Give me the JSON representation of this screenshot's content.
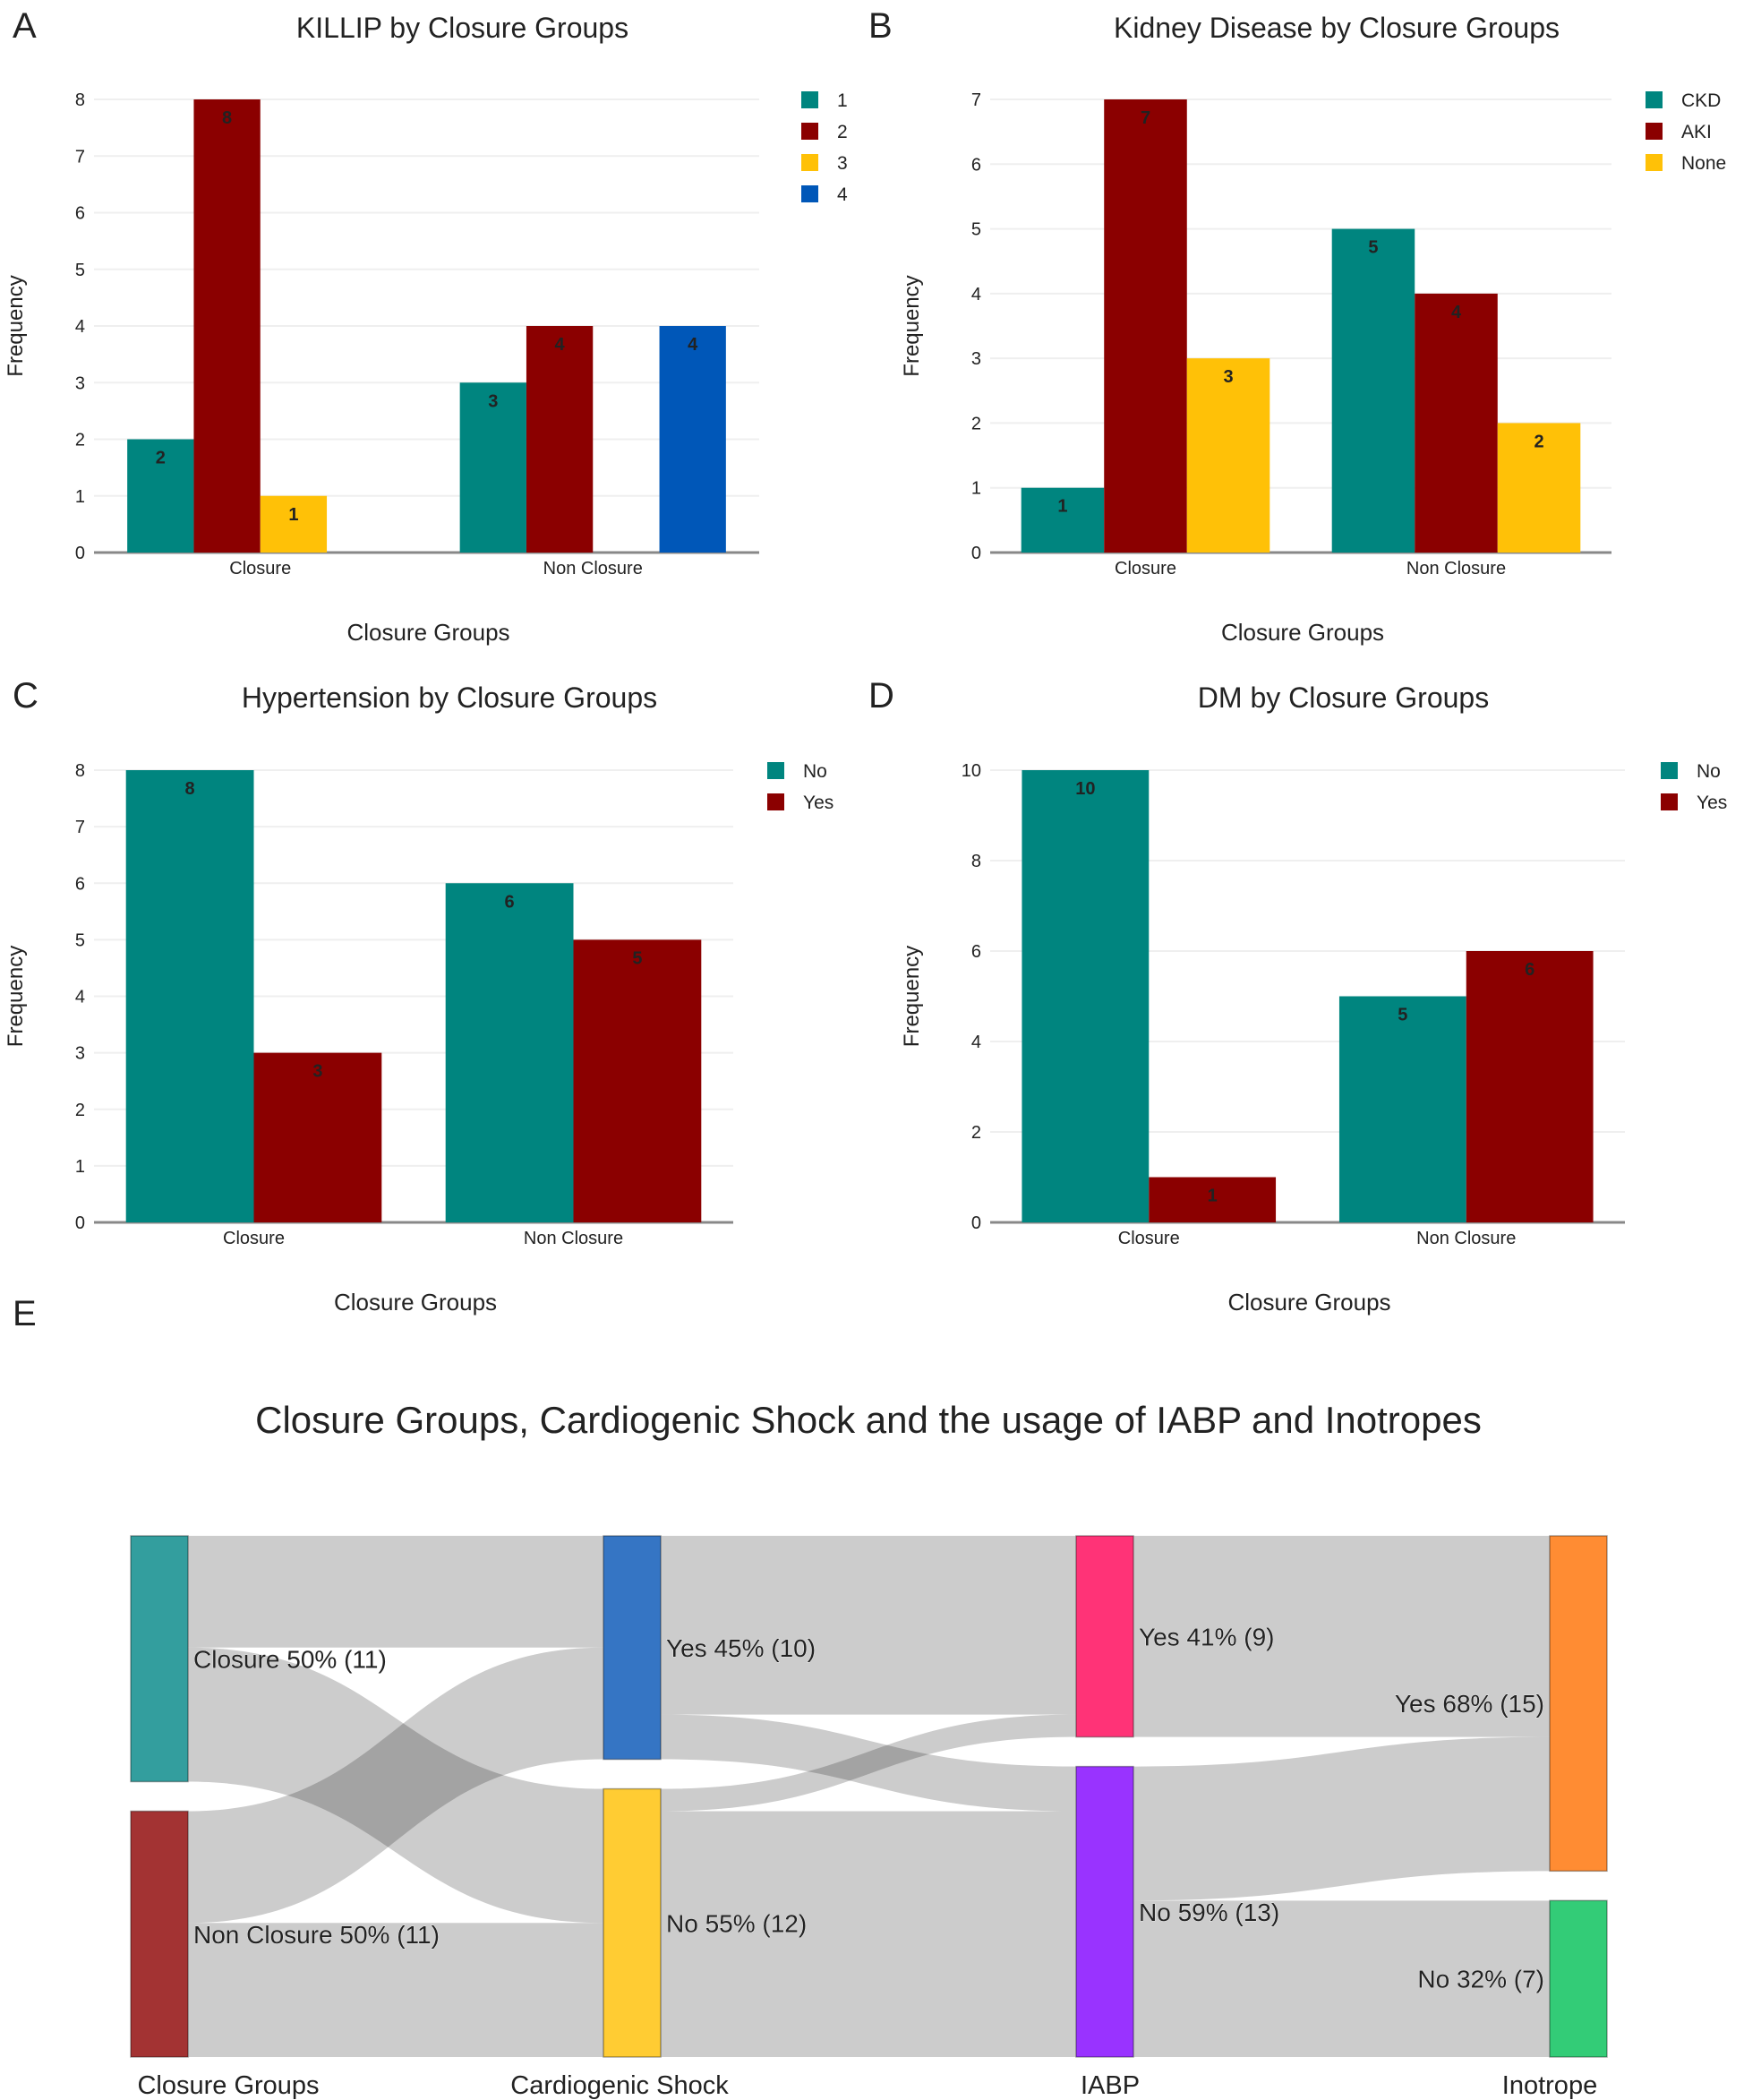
{
  "chart_data": [
    {
      "panel": "A",
      "type": "bar",
      "title": "KILLIP by Closure Groups",
      "xlabel": "Closure Groups",
      "ylabel": "Frequency",
      "categories": [
        "Closure",
        "Non Closure"
      ],
      "ylim": [
        0,
        8
      ],
      "yticks": [
        0,
        1,
        2,
        3,
        4,
        5,
        6,
        7,
        8
      ],
      "legend_position": "top-right",
      "series": [
        {
          "name": "1",
          "color": "#00857F",
          "values": [
            2,
            3
          ]
        },
        {
          "name": "2",
          "color": "#8B0000",
          "values": [
            8,
            4
          ]
        },
        {
          "name": "3",
          "color": "#FFC107",
          "values": [
            1,
            0
          ]
        },
        {
          "name": "4",
          "color": "#0057B8",
          "values": [
            0,
            4
          ]
        }
      ]
    },
    {
      "panel": "B",
      "type": "bar",
      "title": "Kidney Disease by Closure Groups",
      "xlabel": "Closure Groups",
      "ylabel": "Frequency",
      "categories": [
        "Closure",
        "Non Closure"
      ],
      "ylim": [
        0,
        7
      ],
      "yticks": [
        0,
        1,
        2,
        3,
        4,
        5,
        6,
        7
      ],
      "legend_position": "top-right",
      "series": [
        {
          "name": "CKD",
          "color": "#00857F",
          "values": [
            1,
            5
          ]
        },
        {
          "name": "AKI",
          "color": "#8B0000",
          "values": [
            7,
            4
          ]
        },
        {
          "name": "None",
          "color": "#FFC107",
          "values": [
            3,
            2
          ]
        }
      ]
    },
    {
      "panel": "C",
      "type": "bar",
      "title": "Hypertension by Closure Groups",
      "xlabel": "Closure Groups",
      "ylabel": "Frequency",
      "categories": [
        "Closure",
        "Non Closure"
      ],
      "ylim": [
        0,
        8
      ],
      "yticks": [
        0,
        1,
        2,
        3,
        4,
        5,
        6,
        7,
        8
      ],
      "legend_position": "top-right",
      "series": [
        {
          "name": "No",
          "color": "#00857F",
          "values": [
            8,
            6
          ]
        },
        {
          "name": "Yes",
          "color": "#8B0000",
          "values": [
            3,
            5
          ]
        }
      ]
    },
    {
      "panel": "D",
      "type": "bar",
      "title": "DM by Closure Groups",
      "xlabel": "Closure Groups",
      "ylabel": "Frequency",
      "categories": [
        "Closure",
        "Non Closure"
      ],
      "ylim": [
        0,
        10
      ],
      "yticks": [
        0,
        2,
        4,
        6,
        8,
        10
      ],
      "legend_position": "top-right",
      "series": [
        {
          "name": "No",
          "color": "#00857F",
          "values": [
            10,
            5
          ]
        },
        {
          "name": "Yes",
          "color": "#8B0000",
          "values": [
            1,
            6
          ]
        }
      ]
    },
    {
      "panel": "E",
      "type": "sankey",
      "title": "Closure Groups, Cardiogenic Shock and the usage of IABP and Inotropes",
      "columns": [
        "Closure Groups",
        "Cardiogenic Shock",
        "IABP",
        "Inotrope"
      ],
      "nodes": [
        {
          "id": "cg_closure",
          "column": 0,
          "label": "Closure 50% (11)",
          "value": 11,
          "color": "#339E9E"
        },
        {
          "id": "cg_non",
          "column": 0,
          "label": "Non Closure 50% (11)",
          "value": 11,
          "color": "#A33333"
        },
        {
          "id": "cs_yes",
          "column": 1,
          "label": "Yes 45% (10)",
          "value": 10,
          "color": "#3575C4"
        },
        {
          "id": "cs_no",
          "column": 1,
          "label": "No 55% (12)",
          "value": 12,
          "color": "#FFCC33"
        },
        {
          "id": "iabp_yes",
          "column": 2,
          "label": "Yes 41% (9)",
          "value": 9,
          "color": "#FF3377"
        },
        {
          "id": "iabp_no",
          "column": 2,
          "label": "No 59% (13)",
          "value": 13,
          "color": "#9933FF"
        },
        {
          "id": "ino_yes",
          "column": 3,
          "label": "Yes 68% (15)",
          "value": 15,
          "color": "#FF8C33"
        },
        {
          "id": "ino_no",
          "column": 3,
          "label": "No 32% (7)",
          "value": 7,
          "color": "#33CC77"
        }
      ],
      "links": [
        {
          "source": "cg_closure",
          "target": "cs_yes",
          "value": 5
        },
        {
          "source": "cg_closure",
          "target": "cs_no",
          "value": 6
        },
        {
          "source": "cg_non",
          "target": "cs_yes",
          "value": 5
        },
        {
          "source": "cg_non",
          "target": "cs_no",
          "value": 6
        },
        {
          "source": "cs_yes",
          "target": "iabp_yes",
          "value": 8
        },
        {
          "source": "cs_yes",
          "target": "iabp_no",
          "value": 2
        },
        {
          "source": "cs_no",
          "target": "iabp_yes",
          "value": 1
        },
        {
          "source": "cs_no",
          "target": "iabp_no",
          "value": 11
        },
        {
          "source": "iabp_yes",
          "target": "ino_yes",
          "value": 9
        },
        {
          "source": "iabp_no",
          "target": "ino_yes",
          "value": 6
        },
        {
          "source": "iabp_no",
          "target": "ino_no",
          "value": 7
        }
      ]
    }
  ]
}
